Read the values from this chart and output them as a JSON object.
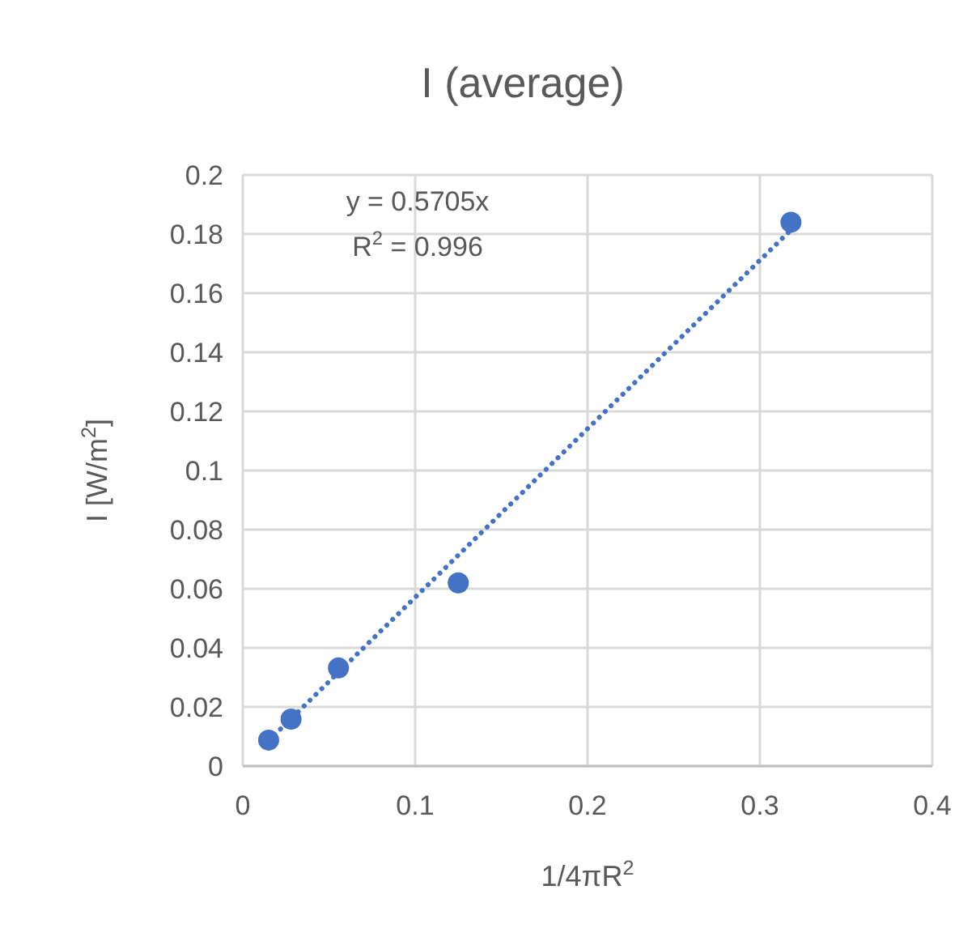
{
  "chart_data": {
    "type": "scatter",
    "title": "I (average)",
    "xlabel": "1/4πR$^{2}$",
    "ylabel": "I [W/m$^{2}$]",
    "xlim": [
      0,
      0.4
    ],
    "xticks": [
      0,
      0.1,
      0.2,
      0.3,
      0.4
    ],
    "ylim": [
      0,
      0.2
    ],
    "yticks": [
      0,
      0.02,
      0.04,
      0.06,
      0.08,
      0.1,
      0.12,
      0.14,
      0.16,
      0.18,
      0.2
    ],
    "grid": true,
    "series": [
      {
        "color": "#4472c4",
        "marker": "circle",
        "x": [
          0.015,
          0.028,
          0.0555,
          0.125,
          0.318
        ],
        "values": [
          0.0088,
          0.0159,
          0.0332,
          0.062,
          0.184
        ]
      },
      {
        "type": "line",
        "color": "#4472c4",
        "marker": "none",
        "line_style": "dotted",
        "x": [
          0.015,
          0.318
        ],
        "values": [
          0.0086,
          0.1814
        ]
      }
    ],
    "annotations": [
      "y = 0.5705x",
      "R$^{2}$ = 0.996"
    ]
  }
}
